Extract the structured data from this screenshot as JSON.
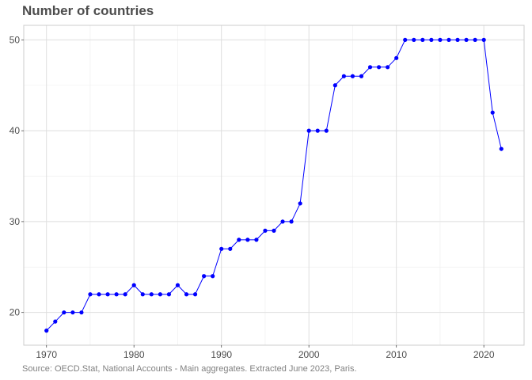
{
  "title": "Number of countries",
  "source": "Source: OECD.Stat, National Accounts - Main aggregates. Extracted June 2023, Paris.",
  "colors": {
    "line": "#0000ff",
    "grid": "#dedede",
    "panel_border": "#cccccc",
    "text": "#4d4d4d"
  },
  "chart_data": {
    "type": "line",
    "title": "Number of countries",
    "xlabel": "",
    "ylabel": "",
    "xlim": [
      1968.8,
      1973.2
    ],
    "ylim": [
      16.4,
      51.6
    ],
    "grid": true,
    "legend": "none",
    "x_ticks": [
      1970,
      1980,
      1990,
      2000,
      2010,
      2020
    ],
    "y_ticks": [
      20,
      30,
      40,
      50
    ],
    "series": [
      {
        "x": [
          1970,
          1971,
          1972,
          1973,
          1974,
          1975,
          1976,
          1977,
          1978,
          1979,
          1980,
          1981,
          1982,
          1983,
          1984,
          1985,
          1986,
          1987,
          1988,
          1989,
          1990,
          1991,
          1992,
          1993,
          1994,
          1995,
          1996,
          1997,
          1998,
          1999,
          2000,
          2001,
          2002,
          2003,
          2004,
          2005,
          2006,
          2007,
          2008,
          2009,
          2010,
          2011,
          2012,
          2013,
          2014,
          2015,
          2016,
          2017,
          2018,
          2019,
          2020,
          2021,
          2022
        ],
        "values": [
          18,
          19,
          20,
          20,
          20,
          22,
          22,
          22,
          22,
          22,
          23,
          22,
          22,
          22,
          22,
          23,
          22,
          22,
          24,
          24,
          27,
          27,
          28,
          28,
          28,
          29,
          29,
          30,
          30,
          32,
          40,
          40,
          40,
          45,
          46,
          46,
          46,
          47,
          47,
          47,
          48,
          50,
          50,
          50,
          50,
          50,
          50,
          50,
          50,
          50,
          50,
          42,
          38
        ]
      }
    ]
  }
}
